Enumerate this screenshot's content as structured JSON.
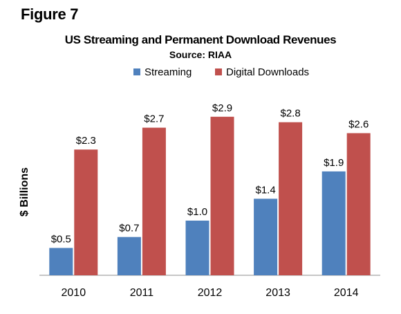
{
  "figure_label": "Figure 7",
  "chart_data": {
    "type": "bar",
    "title": "US Streaming and Permanent Download Revenues",
    "subtitle": "Source: RIAA",
    "xlabel": "",
    "ylabel": "$ Billions",
    "categories": [
      "2010",
      "2011",
      "2012",
      "2013",
      "2014"
    ],
    "series": [
      {
        "name": "Streaming",
        "color": "#4F81BD",
        "values": [
          0.5,
          0.7,
          1.0,
          1.4,
          1.9
        ],
        "labels": [
          "$0.5",
          "$0.7",
          "$1.0",
          "$1.4",
          "$1.9"
        ]
      },
      {
        "name": "Digital Downloads",
        "color": "#C0504D",
        "values": [
          2.3,
          2.7,
          2.9,
          2.8,
          2.6
        ],
        "labels": [
          "$2.3",
          "$2.7",
          "$2.9",
          "$2.8",
          "$2.6"
        ]
      }
    ],
    "ylim": [
      0,
      3.1
    ],
    "grid": false,
    "legend_position": "top"
  }
}
